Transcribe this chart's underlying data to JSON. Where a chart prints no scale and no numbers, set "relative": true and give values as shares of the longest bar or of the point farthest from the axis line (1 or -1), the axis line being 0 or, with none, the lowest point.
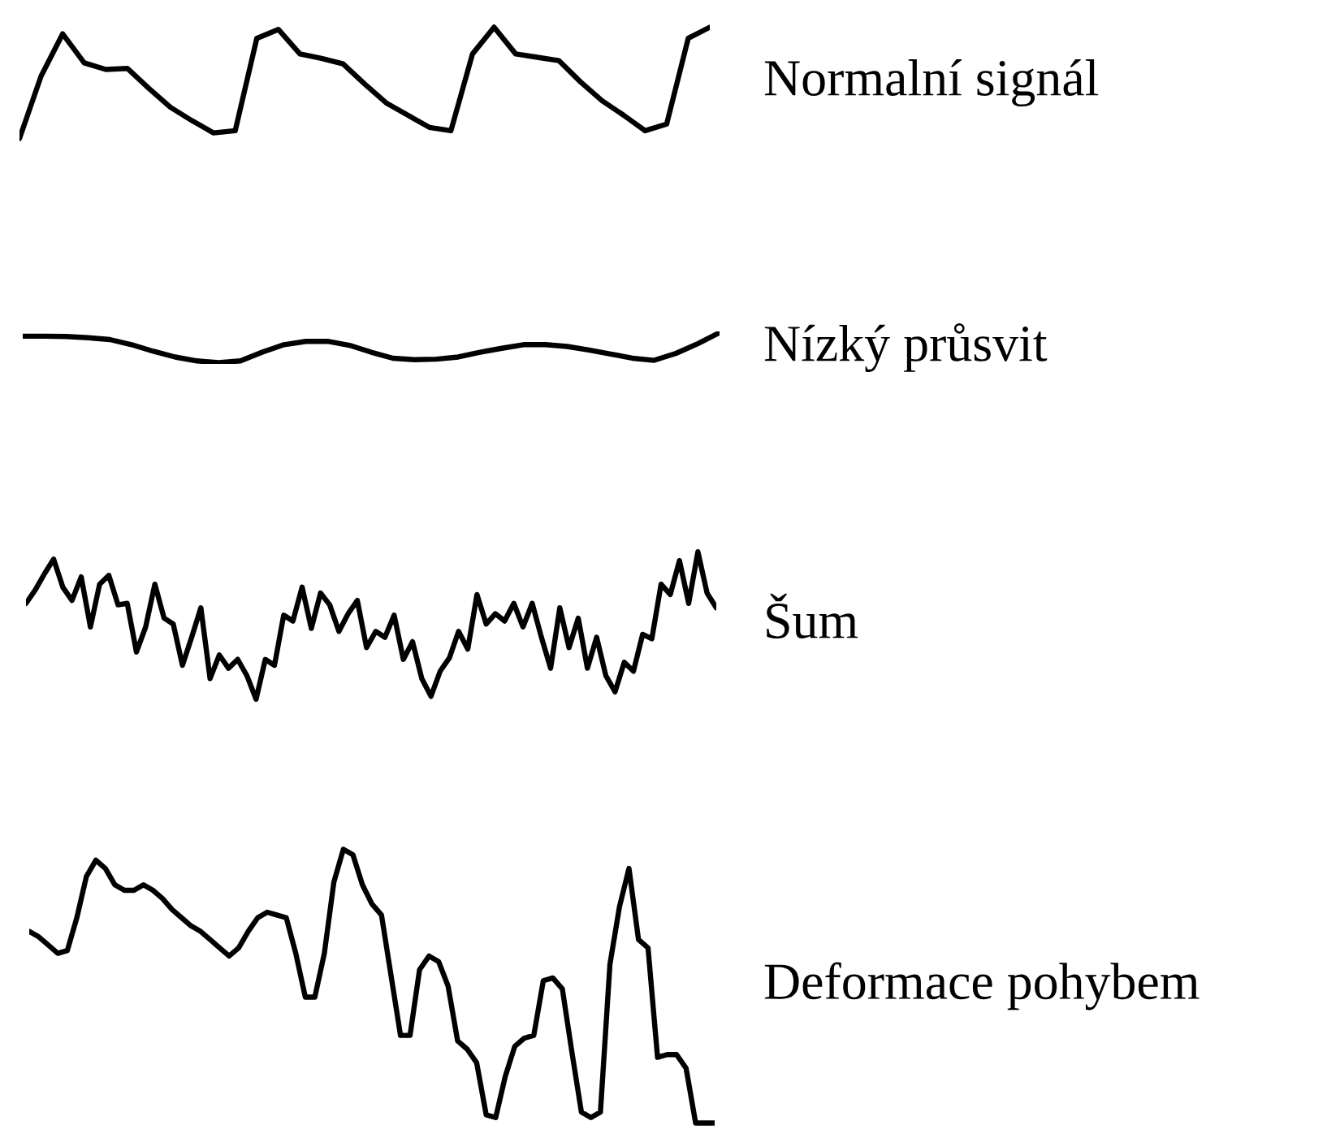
{
  "chart_data": [
    {
      "type": "line",
      "relative": true,
      "categories": [
        null,
        null,
        null,
        null,
        null,
        null,
        null,
        null,
        null,
        null,
        null,
        null,
        null,
        null,
        null,
        null,
        null,
        null,
        null,
        null,
        null,
        null,
        null,
        null,
        null,
        null,
        null,
        null,
        null,
        null,
        null,
        null,
        null
      ],
      "series": [
        {
          "name": "Normalní signál",
          "color": "#000000",
          "values": [
            0,
            0.56,
            0.94,
            0.68,
            0.62,
            0.63,
            0.45,
            0.28,
            0.16,
            0.05,
            0.07,
            0.9,
            0.98,
            0.76,
            0.72,
            0.67,
            0.49,
            0.32,
            0.21,
            0.1,
            0.07,
            0.76,
            1,
            0.76,
            0.73,
            0.7,
            0.51,
            0.34,
            0.21,
            0.07,
            0.13,
            0.9,
            1
          ]
        }
      ]
    },
    {
      "type": "line",
      "relative": true,
      "categories": [
        null,
        null,
        null,
        null,
        null,
        null,
        null,
        null,
        null,
        null,
        null,
        null,
        null,
        null,
        null,
        null,
        null,
        null,
        null,
        null,
        null,
        null,
        null,
        null,
        null,
        null,
        null,
        null,
        null,
        null,
        null,
        null,
        null
      ],
      "series": [
        {
          "name": "Nízký průsvit",
          "color": "#000000",
          "values": [
            0.88,
            0.88,
            0.87,
            0.83,
            0.77,
            0.6,
            0.38,
            0.19,
            0.06,
            0,
            0.06,
            0.35,
            0.6,
            0.71,
            0.71,
            0.58,
            0.35,
            0.15,
            0.1,
            0.12,
            0.19,
            0.35,
            0.48,
            0.6,
            0.6,
            0.54,
            0.42,
            0.29,
            0.15,
            0.08,
            0.31,
            0.63,
            1
          ]
        }
      ]
    },
    {
      "type": "line",
      "relative": true,
      "categories": [
        null,
        null,
        null,
        null,
        null,
        null,
        null,
        null,
        null,
        null,
        null,
        null,
        null,
        null,
        null,
        null,
        null,
        null,
        null,
        null,
        null,
        null,
        null,
        null,
        null,
        null,
        null,
        null,
        null,
        null,
        null,
        null,
        null,
        null,
        null,
        null,
        null,
        null,
        null,
        null,
        null,
        null,
        null,
        null,
        null,
        null,
        null,
        null,
        null,
        null,
        null,
        null,
        null,
        null,
        null,
        null,
        null,
        null,
        null,
        null,
        null,
        null,
        null,
        null,
        null,
        null,
        null,
        null,
        null,
        null,
        null,
        null,
        null,
        null,
        null,
        null
      ],
      "series": [
        {
          "name": "Šum",
          "color": "#000000",
          "values": [
            0.65,
            0.74,
            0.85,
            0.95,
            0.76,
            0.67,
            0.83,
            0.49,
            0.78,
            0.84,
            0.64,
            0.65,
            0.32,
            0.49,
            0.78,
            0.55,
            0.51,
            0.23,
            0.42,
            0.62,
            0.14,
            0.3,
            0.21,
            0.27,
            0.16,
            0,
            0.27,
            0.23,
            0.57,
            0.53,
            0.76,
            0.48,
            0.72,
            0.64,
            0.46,
            0.58,
            0.67,
            0.35,
            0.46,
            0.42,
            0.57,
            0.27,
            0.39,
            0.14,
            0.02,
            0.19,
            0.28,
            0.46,
            0.34,
            0.71,
            0.51,
            0.58,
            0.53,
            0.65,
            0.49,
            0.65,
            0.42,
            0.21,
            0.62,
            0.35,
            0.55,
            0.21,
            0.42,
            0.16,
            0.05,
            0.25,
            0.19,
            0.44,
            0.41,
            0.78,
            0.71,
            0.94,
            0.65,
            1,
            0.72,
            0.62
          ]
        }
      ]
    },
    {
      "type": "line",
      "relative": true,
      "categories": [
        null,
        null,
        null,
        null,
        null,
        null,
        null,
        null,
        null,
        null,
        null,
        null,
        null,
        null,
        null,
        null,
        null,
        null,
        null,
        null,
        null,
        null,
        null,
        null,
        null,
        null,
        null,
        null,
        null,
        null,
        null,
        null,
        null,
        null,
        null,
        null,
        null,
        null,
        null,
        null,
        null,
        null,
        null,
        null,
        null,
        null,
        null,
        null,
        null,
        null,
        null,
        null,
        null,
        null,
        null,
        null,
        null,
        null,
        null,
        null,
        null,
        null,
        null,
        null,
        null,
        null,
        null,
        null,
        null,
        null,
        null,
        null,
        null
      ],
      "series": [
        {
          "name": "Deformace pohybem",
          "color": "#000000",
          "values": [
            0.7,
            0.68,
            0.65,
            0.62,
            0.63,
            0.75,
            0.9,
            0.96,
            0.93,
            0.87,
            0.85,
            0.85,
            0.87,
            0.85,
            0.82,
            0.78,
            0.75,
            0.72,
            0.7,
            0.67,
            0.64,
            0.61,
            0.64,
            0.7,
            0.75,
            0.77,
            0.76,
            0.75,
            0.62,
            0.46,
            0.46,
            0.62,
            0.88,
            1,
            0.98,
            0.87,
            0.8,
            0.76,
            0.54,
            0.32,
            0.32,
            0.56,
            0.61,
            0.59,
            0.5,
            0.3,
            0.27,
            0.22,
            0.03,
            0.02,
            0.17,
            0.28,
            0.31,
            0.32,
            0.52,
            0.53,
            0.49,
            0.26,
            0.04,
            0.02,
            0.04,
            0.58,
            0.79,
            0.93,
            0.67,
            0.64,
            0.24,
            0.25,
            0.25,
            0.2,
            0,
            0,
            0
          ]
        }
      ]
    }
  ]
}
